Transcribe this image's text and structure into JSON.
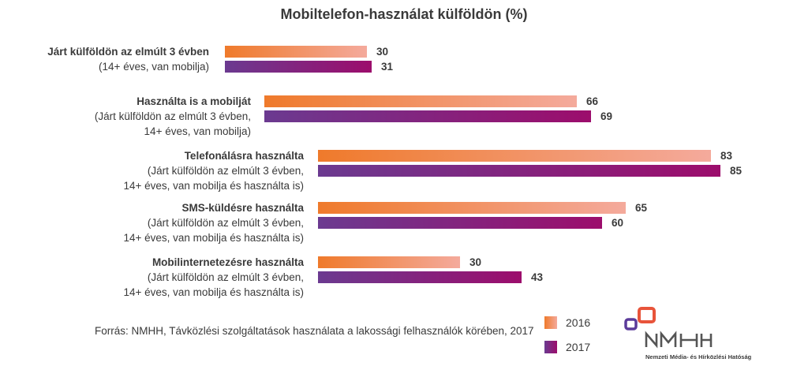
{
  "chart_data": {
    "type": "bar",
    "orientation": "horizontal",
    "title": "Mobiltelefon-használat külföldön (%)",
    "categories": [
      {
        "title": "Járt külföldön az elmúlt 3 évben",
        "sub": [
          "(14+ éves, van mobilja)"
        ]
      },
      {
        "title": "Használta is a mobilját",
        "sub": [
          "(Járt külföldön az elmúlt 3 évben,",
          "14+ éves, van mobilja)"
        ]
      },
      {
        "title": "Telefonálásra használta",
        "sub": [
          "(Járt külföldön az elmúlt 3 évben,",
          "14+ éves, van mobilja és használta is)"
        ]
      },
      {
        "title": "SMS-küldésre használta",
        "sub": [
          "(Járt külföldön az elmúlt 3 évben,",
          "14+ éves, van mobilja és használta is)"
        ]
      },
      {
        "title": "Mobilinternetezésre használta",
        "sub": [
          "(Járt külföldön az elmúlt 3 évben,",
          "14+ éves, van mobilja és használta is)"
        ]
      }
    ],
    "series": [
      {
        "name": "2016",
        "values": [
          30,
          66,
          83,
          65,
          30
        ],
        "color_start": "#ef7a2b",
        "color_end": "#f4aa9c"
      },
      {
        "name": "2017",
        "values": [
          31,
          69,
          85,
          60,
          43
        ],
        "color_start": "#6b3a90",
        "color_end": "#9c0d6c"
      }
    ],
    "legend_position": "bottom-right",
    "grid": false
  },
  "source": "Forrás: NMHH, Távközlési szolgáltatások használata a lakossági felhasználók körében, 2017",
  "logo": {
    "text": "NMHH",
    "subtitle": "Nemzeti Média- és Hírközlési Hatóság"
  }
}
